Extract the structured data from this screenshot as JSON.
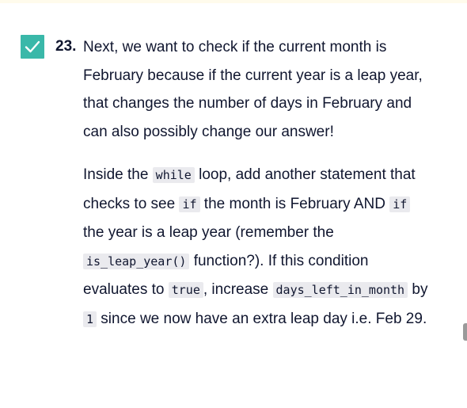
{
  "task": {
    "number": "23.",
    "checked": true,
    "para1": "Next, we want to check if the current month is February because if the current year is a leap year, that changes the number of days in February and can also possibly change our answer!",
    "para2": {
      "t1": "Inside the ",
      "c1": "while",
      "t2": " loop, add another statement that checks to see ",
      "c2": "if",
      "t3": " the month is February AND ",
      "c3": "if",
      "t4": " the year is a leap year (remember the ",
      "c4": "is_leap_year()",
      "t5": " function?). If this condition evaluates to ",
      "c5": "true",
      "t6": ", increase ",
      "c6": "days_left_in_month",
      "t7": " by ",
      "c7": "1",
      "t8": " since we now have an extra leap day i.e. Feb 29."
    }
  },
  "icons": {
    "checkbox": "checkmark-icon"
  },
  "colors": {
    "accent": "#3ab8a9",
    "text": "#10162f",
    "code_bg": "#eaeaee",
    "top_strip": "#fffbec"
  }
}
